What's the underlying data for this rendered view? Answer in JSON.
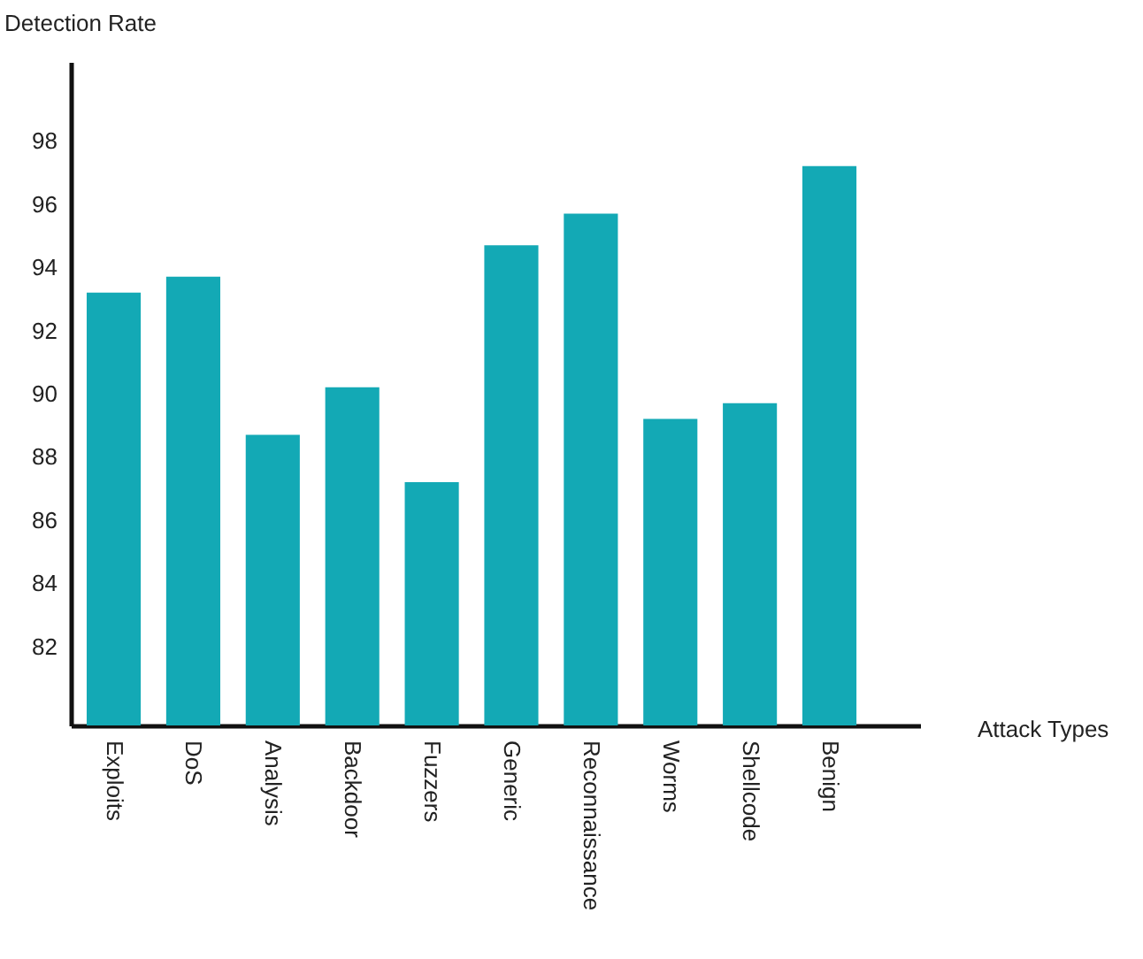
{
  "chart_data": {
    "type": "bar",
    "xlabel": "Attack Types",
    "ylabel": "Detection Rate",
    "categories": [
      "Exploits",
      "DoS",
      "Analysis",
      "Backdoor",
      "Fuzzers",
      "Generic",
      "Reconnaissance",
      "Worms",
      "Shellcode",
      "Benign"
    ],
    "values": [
      93.2,
      93.7,
      88.7,
      90.2,
      87.2,
      94.7,
      95.7,
      89.2,
      89.7,
      97.2
    ],
    "color": "#13a9b5",
    "ylim": [
      79.5,
      100.5
    ],
    "yticks": [
      82,
      84,
      86,
      88,
      90,
      92,
      94,
      96,
      98
    ],
    "grid": false
  }
}
